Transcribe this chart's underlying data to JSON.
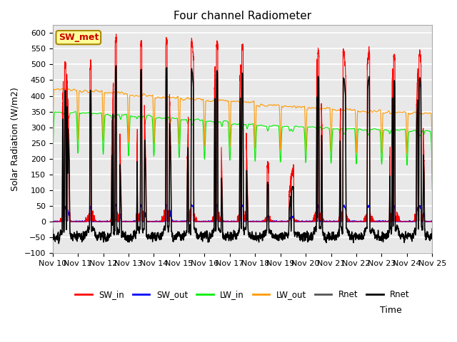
{
  "title": "Four channel Radiometer",
  "ylabel": "Solar Radiation (W/m2)",
  "xlabel": "Time",
  "ylim": [
    -100,
    625
  ],
  "yticks": [
    -100,
    -50,
    0,
    50,
    100,
    150,
    200,
    250,
    300,
    350,
    400,
    450,
    500,
    550,
    600
  ],
  "annotation_text": "SW_met",
  "annotation_color": "#cc0000",
  "annotation_bg": "#ffff99",
  "annotation_border": "#aa8800",
  "colors": {
    "SW_in": "#ff0000",
    "SW_out": "#0000ff",
    "LW_in": "#00ee00",
    "LW_out": "#ff9900",
    "Rnet_black": "#000000",
    "Rnet_gray": "#555555"
  },
  "n_days": 15,
  "xtick_labels": [
    "Nov 10",
    "Nov 11",
    "Nov 12",
    "Nov 13",
    "Nov 14",
    "Nov 15",
    "Nov 16",
    "Nov 17",
    "Nov 18",
    "Nov 19",
    "Nov 20",
    "Nov 21",
    "Nov 22",
    "Nov 23",
    "Nov 24",
    "Nov 25"
  ],
  "background_color": "#e8e8e8",
  "grid_color": "#ffffff"
}
